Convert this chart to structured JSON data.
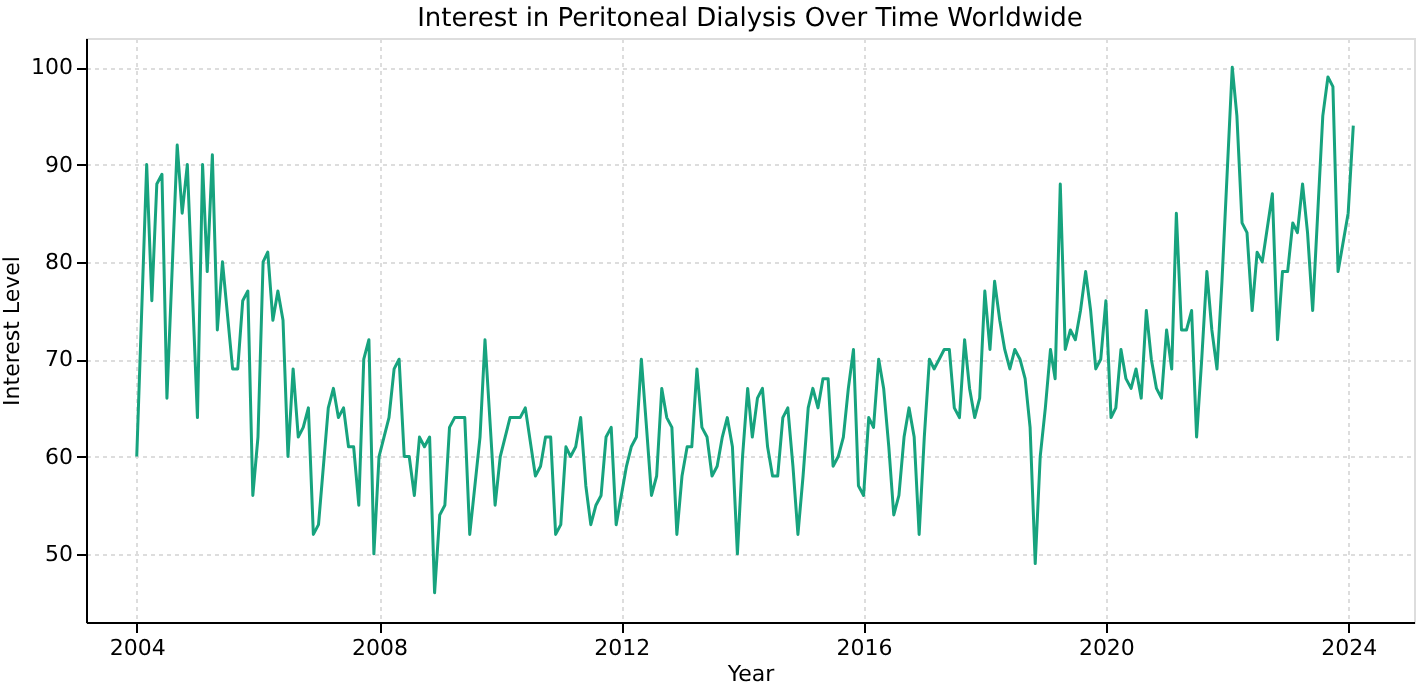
{
  "chart_data": {
    "type": "line",
    "title": "Interest in Peritoneal Dialysis Over Time Worldwide",
    "xlabel": "Year",
    "ylabel": "Interest Level",
    "xlim": [
      "2003-03",
      "2025-02"
    ],
    "ylim": [
      43,
      103
    ],
    "xticks": [
      {
        "value": "2004",
        "label": "2004"
      },
      {
        "value": "2008",
        "label": "2008"
      },
      {
        "value": "2012",
        "label": "2012"
      },
      {
        "value": "2016",
        "label": "2016"
      },
      {
        "value": "2020",
        "label": "2020"
      },
      {
        "value": "2024",
        "label": "2024"
      }
    ],
    "yticks": [
      50,
      60,
      70,
      80,
      90,
      100
    ],
    "grid": true,
    "marker": "none",
    "line_style": "solid",
    "series": [
      {
        "color": "#17a37e",
        "x": [
          "2004-01",
          "2004-03",
          "2004-04",
          "2004-05",
          "2004-06",
          "2004-07",
          "2004-09",
          "2004-10",
          "2004-11",
          "2005-01",
          "2005-02",
          "2005-03",
          "2005-04",
          "2005-05",
          "2005-06",
          "2005-08",
          "2005-09",
          "2005-10",
          "2005-11",
          "2005-12",
          "2006-01",
          "2006-02",
          "2006-03",
          "2006-04",
          "2006-05",
          "2006-06",
          "2006-07",
          "2006-08",
          "2006-09",
          "2006-10",
          "2006-11",
          "2006-12",
          "2007-01",
          "2007-03",
          "2007-04",
          "2007-05",
          "2007-06",
          "2007-07",
          "2007-08",
          "2007-09",
          "2007-10",
          "2007-11",
          "2007-12",
          "2008-01",
          "2008-03",
          "2008-04",
          "2008-05",
          "2008-06",
          "2008-07",
          "2008-08",
          "2008-09",
          "2008-10",
          "2008-11",
          "2008-12",
          "2009-01",
          "2009-02",
          "2009-03",
          "2009-04",
          "2009-06",
          "2009-07",
          "2009-09",
          "2009-10",
          "2009-12",
          "2010-01",
          "2010-03",
          "2010-05",
          "2010-06",
          "2010-08",
          "2010-09",
          "2010-10",
          "2010-11",
          "2010-12",
          "2011-01",
          "2011-02",
          "2011-03",
          "2011-04",
          "2011-05",
          "2011-06",
          "2011-07",
          "2011-08",
          "2011-09",
          "2011-10",
          "2011-11",
          "2011-12",
          "2012-02",
          "2012-03",
          "2012-04",
          "2012-05",
          "2012-06",
          "2012-07",
          "2012-08",
          "2012-09",
          "2012-10",
          "2012-11",
          "2012-12",
          "2013-01",
          "2013-02",
          "2013-03",
          "2013-04",
          "2013-05",
          "2013-06",
          "2013-07",
          "2013-08",
          "2013-09",
          "2013-10",
          "2013-11",
          "2013-12",
          "2014-01",
          "2014-02",
          "2014-03",
          "2014-04",
          "2014-05",
          "2014-06",
          "2014-07",
          "2014-08",
          "2014-09",
          "2014-10",
          "2014-11",
          "2014-12",
          "2015-01",
          "2015-02",
          "2015-03",
          "2015-04",
          "2015-05",
          "2015-06",
          "2015-07",
          "2015-08",
          "2015-09",
          "2015-10",
          "2015-11",
          "2015-12",
          "2016-01",
          "2016-02",
          "2016-03",
          "2016-04",
          "2016-05",
          "2016-06",
          "2016-07",
          "2016-08",
          "2016-09",
          "2016-10",
          "2016-11",
          "2016-12",
          "2017-01",
          "2017-02",
          "2017-03",
          "2017-04",
          "2017-05",
          "2017-06",
          "2017-07",
          "2017-08",
          "2017-09",
          "2017-10",
          "2017-11",
          "2017-12",
          "2018-01",
          "2018-02",
          "2018-03",
          "2018-04",
          "2018-05",
          "2018-06",
          "2018-07",
          "2018-08",
          "2018-09",
          "2018-10",
          "2018-11",
          "2018-12",
          "2019-01",
          "2019-02",
          "2019-03",
          "2019-04",
          "2019-05",
          "2019-06",
          "2019-07",
          "2019-08",
          "2019-09",
          "2019-10",
          "2019-11",
          "2019-12",
          "2020-01",
          "2020-02",
          "2020-03",
          "2020-04",
          "2020-05",
          "2020-06",
          "2020-07",
          "2020-08",
          "2020-09",
          "2020-10",
          "2020-11",
          "2020-12",
          "2021-01",
          "2021-02",
          "2021-03",
          "2021-04",
          "2021-05",
          "2021-06",
          "2021-07",
          "2021-08",
          "2021-09",
          "2021-10",
          "2021-11",
          "2021-12",
          "2022-02",
          "2022-03",
          "2022-04",
          "2022-05",
          "2022-06",
          "2022-07",
          "2022-08",
          "2022-10",
          "2022-11",
          "2022-12",
          "2023-01",
          "2023-02",
          "2023-03",
          "2023-04",
          "2023-05",
          "2023-06",
          "2023-08",
          "2023-09",
          "2023-10",
          "2023-11",
          "2024-01",
          "2024-02"
        ],
        "values": [
          60,
          90,
          76,
          88,
          89,
          66,
          92,
          85,
          90,
          64,
          90,
          79,
          91,
          73,
          80,
          69,
          69,
          76,
          77,
          56,
          62,
          80,
          81,
          74,
          77,
          74,
          60,
          69,
          62,
          63,
          65,
          52,
          53,
          65,
          67,
          64,
          65,
          61,
          61,
          55,
          70,
          72,
          50,
          60,
          64,
          69,
          70,
          60,
          60,
          56,
          62,
          61,
          62,
          46,
          54,
          55,
          63,
          64,
          64,
          52,
          62,
          72,
          55,
          60,
          64,
          64,
          65,
          58,
          59,
          62,
          62,
          52,
          53,
          61,
          60,
          61,
          64,
          57,
          53,
          55,
          56,
          62,
          63,
          53,
          59,
          61,
          62,
          70,
          63,
          56,
          58,
          67,
          64,
          63,
          52,
          58,
          61,
          61,
          69,
          63,
          62,
          58,
          59,
          62,
          64,
          61,
          50,
          60,
          67,
          62,
          66,
          67,
          61,
          58,
          58,
          64,
          65,
          59,
          52,
          58,
          65,
          67,
          65,
          68,
          68,
          59,
          60,
          62,
          67,
          71,
          57,
          56,
          64,
          63,
          70,
          67,
          61,
          54,
          56,
          62,
          65,
          62,
          52,
          62,
          70,
          69,
          70,
          71,
          71,
          65,
          64,
          72,
          67,
          64,
          66,
          77,
          71,
          78,
          74,
          71,
          69,
          71,
          70,
          68,
          63,
          49,
          60,
          65,
          71,
          68,
          88,
          71,
          73,
          72,
          75,
          79,
          75,
          69,
          70,
          76,
          64,
          65,
          71,
          68,
          67,
          69,
          66,
          75,
          70,
          67,
          66,
          73,
          69,
          85,
          73,
          73,
          75,
          62,
          70,
          79,
          73,
          69,
          78,
          100,
          95,
          84,
          83,
          75,
          81,
          80,
          87,
          72,
          79,
          79,
          84,
          83,
          88,
          83,
          75,
          95,
          99,
          98,
          79,
          85,
          94
        ]
      }
    ]
  }
}
